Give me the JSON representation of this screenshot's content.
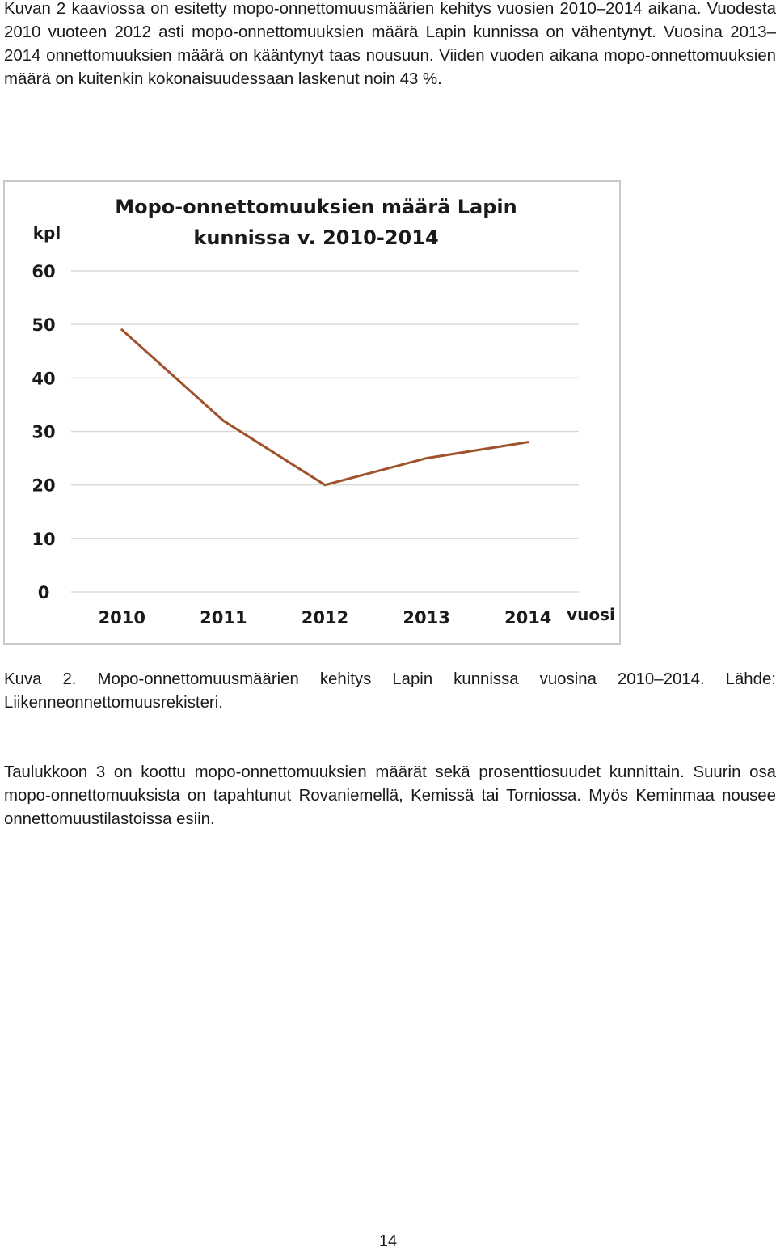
{
  "paragraph1": "Kuvan 2 kaaviossa on esitetty mopo-onnettomuusmäärien kehitys vuosien 2010–2014 aikana. Vuodesta 2010 vuoteen 2012 asti mopo-onnettomuuksien määrä Lapin kunnissa on vähentynyt. Vuosina 2013–2014 onnettomuuksien määrä on kääntynyt taas nousuun. Viiden vuoden aikana mopo-onnettomuuksien määrä on kuitenkin kokonaisuudessaan laskenut noin 43 %.",
  "caption": "Kuva 2. Mopo-onnettomuusmäärien kehitys Lapin kunnissa vuosina 2010–2014. Lähde: Liikenneonnettomuusrekisteri.",
  "paragraph2": "Taulukkoon 3 on koottu mopo-onnettomuuksien määrät sekä prosenttiosuudet kunnittain. Suurin osa mopo-onnettomuuksista on tapahtunut Rovaniemellä, Kemissä tai Torniossa. Myös Keminmaa nousee onnettomuustilastoissa esiin.",
  "page_number": "14",
  "chart_data": {
    "type": "line",
    "title_line1": "Mopo-onnettomuuksien määrä Lapin",
    "title_line2": "kunnissa v. 2010-2014",
    "ylabel": "kpl",
    "xlabel": "vuosi",
    "categories": [
      "2010",
      "2011",
      "2012",
      "2013",
      "2014"
    ],
    "series": [
      {
        "values": [
          49,
          32,
          20,
          25,
          28
        ],
        "color": "#a0522d"
      }
    ],
    "ylim": [
      0,
      60
    ],
    "yticks": [
      0,
      10,
      20,
      30,
      40,
      50,
      60
    ],
    "grid": true,
    "legend": "none"
  }
}
